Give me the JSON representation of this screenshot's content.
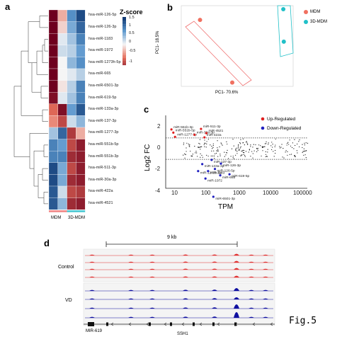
{
  "figure": {
    "label": "Fig.5",
    "panel_letters": [
      "a",
      "b",
      "c",
      "d"
    ]
  },
  "heatmap": {
    "legend_title": "Z-score",
    "legend_ticks": [
      "1.5",
      "1",
      "0.5",
      "0",
      "-0.5",
      "-1"
    ],
    "groups": [
      "MDM",
      "3D-MDM"
    ],
    "group_colors": [
      "#f08080",
      "#40c4d0"
    ],
    "rows": [
      {
        "label": "hsa-miR-126-5p",
        "z": [
          -1.6,
          -0.4,
          0.8,
          1.3
        ]
      },
      {
        "label": "hsa-miR-126-3p",
        "z": [
          -1.6,
          -0.2,
          0.6,
          1.1
        ]
      },
      {
        "label": "hsa-miR-1183",
        "z": [
          -1.5,
          0.1,
          0.4,
          0.9
        ]
      },
      {
        "label": "hsa-miR-1972",
        "z": [
          -1.5,
          0.2,
          0.3,
          0.7
        ]
      },
      {
        "label": "hsa-miR-1273h-5p",
        "z": [
          -1.5,
          0.0,
          0.5,
          0.8
        ]
      },
      {
        "label": "hsa-miR-665",
        "z": [
          -1.5,
          0.0,
          0.1,
          0.3
        ]
      },
      {
        "label": "hsa-miR-6501-3p",
        "z": [
          -1.5,
          -0.1,
          0.3,
          0.9
        ]
      },
      {
        "label": "hsa-miR-619-5p",
        "z": [
          -1.4,
          0.1,
          0.4,
          0.9
        ]
      },
      {
        "label": "hsa-miR-133a-3p",
        "z": [
          -0.8,
          -1.4,
          0.7,
          1.2
        ]
      },
      {
        "label": "hsa-miR-137-3p",
        "z": [
          -0.6,
          -1.0,
          0.2,
          0.5
        ]
      },
      {
        "label": "hsa-miR-1277-3p",
        "z": [
          0.4,
          1.1,
          -1.1,
          -0.4
        ]
      },
      {
        "label": "hsa-miR-551b-5p",
        "z": [
          0.9,
          0.7,
          -1.0,
          -1.3
        ]
      },
      {
        "label": "hsa-miR-551b-3p",
        "z": [
          0.9,
          0.9,
          -1.2,
          -1.3
        ]
      },
      {
        "label": "hsa-miR-511-3p",
        "z": [
          1.3,
          0.6,
          -1.0,
          -1.3
        ]
      },
      {
        "label": "hsa-miR-30a-3p",
        "z": [
          1.3,
          0.6,
          -1.2,
          -1.3
        ]
      },
      {
        "label": "hsa-miR-422a",
        "z": [
          1.2,
          0.2,
          -1.0,
          -1.1
        ]
      },
      {
        "label": "hsa-miR-4521",
        "z": [
          1.2,
          0.5,
          -1.2,
          -1.3
        ]
      }
    ]
  },
  "pca": {
    "xlabel": "PC1- 70.6%",
    "ylabel": "PC1- 18.5%",
    "legend": [
      {
        "label": "MDM",
        "color": "#f07060"
      },
      {
        "label": "3D-MDM",
        "color": "#20c0c8"
      }
    ],
    "points": [
      {
        "group": "MDM",
        "x": -0.75,
        "y": 0.72
      },
      {
        "group": "MDM",
        "x": -0.1,
        "y": -0.92
      },
      {
        "group": "3D-MDM",
        "x": 0.93,
        "y": 1.0
      },
      {
        "group": "3D-MDM",
        "x": 0.94,
        "y": 0.15
      }
    ]
  },
  "volcano": {
    "xlabel": "TPM",
    "ylabel": "Log2 FC",
    "x_ticks": [
      "10",
      "100",
      "1000",
      "10000",
      "100000"
    ],
    "y_ticks": [
      "2",
      "0",
      "-2",
      "-4"
    ],
    "legend": [
      {
        "label": "Up-Regulated",
        "color": "#e02020"
      },
      {
        "label": "Down-Regulated",
        "color": "#2020c0"
      }
    ],
    "up_genes": [
      {
        "label": "miR-551b-3p",
        "tpm": 7,
        "fc": 1.8
      },
      {
        "label": "miR-551b-5p",
        "tpm": 8,
        "fc": 1.5
      },
      {
        "label": "miR-1277-3p",
        "tpm": 9,
        "fc": 1.1
      },
      {
        "label": "miR-511-3p",
        "tpm": 55,
        "fc": 1.85
      },
      {
        "label": "miR-30a-3p",
        "tpm": 35,
        "fc": 1.3
      },
      {
        "label": "miR-4521",
        "tpm": 80,
        "fc": 1.45
      },
      {
        "label": "miR-422a",
        "tpm": 70,
        "fc": 1.05
      }
    ],
    "down_genes": [
      {
        "label": "miR-137-3p",
        "tpm": 115,
        "fc": -1.05
      },
      {
        "label": "miR-133a-3p",
        "tpm": 60,
        "fc": -1.45
      },
      {
        "label": "miR-126-3p",
        "tpm": 220,
        "fc": -1.4
      },
      {
        "label": "miR-126-5p",
        "tpm": 145,
        "fc": -1.9
      },
      {
        "label": "miR-1273h-5p",
        "tpm": 45,
        "fc": -2.1
      },
      {
        "label": "miR-1183",
        "tpm": 90,
        "fc": -2.1
      },
      {
        "label": "miR-619-5p",
        "tpm": 400,
        "fc": -2.4
      },
      {
        "label": "miR-1972",
        "tpm": 75,
        "fc": -2.8
      },
      {
        "label": "miR-665",
        "tpm": 210,
        "fc": -2.5
      },
      {
        "label": "miR-6501-3p",
        "tpm": 130,
        "fc": -4.5
      }
    ]
  },
  "tracks": {
    "scale_label": "9 kb",
    "conditions": [
      "Control",
      "VD"
    ],
    "gene_labels": [
      "MIR-619",
      "SSH1"
    ],
    "control_color": "#e03030",
    "vd_color": "#1010a0"
  }
}
